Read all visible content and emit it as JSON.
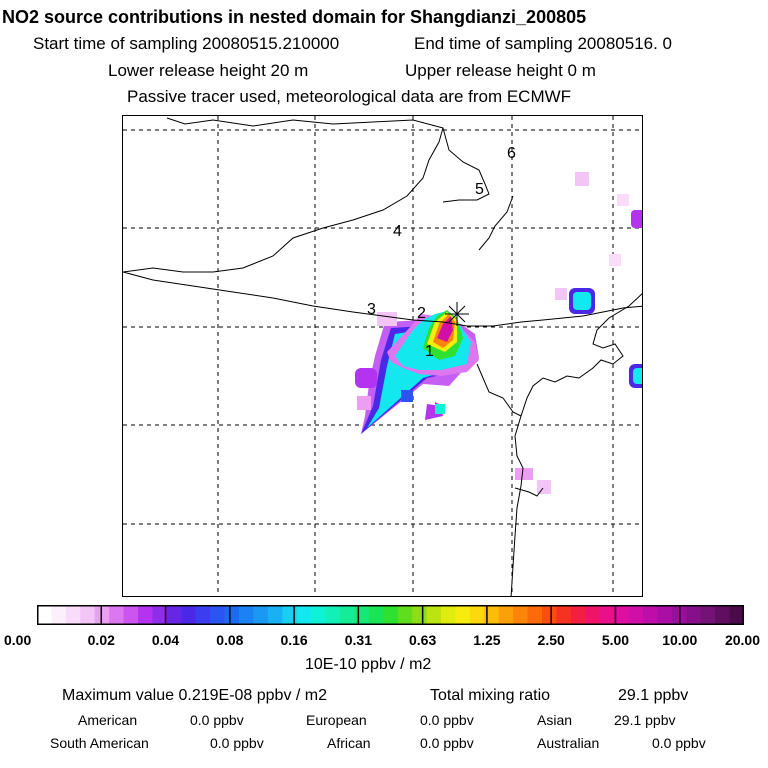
{
  "header": {
    "title": "NO2 source contributions in nested domain for Shangdianzi_200805",
    "start_label": "Start time of sampling 20080515.210000",
    "end_label": "End time of sampling 20080516.     0",
    "lower_release": "Lower release height   20 m",
    "upper_release": "Upper release height    0 m",
    "note": "Passive tracer used, meteorological data are from ECMWF"
  },
  "map": {
    "contour_labels": [
      "1",
      "2",
      "3",
      "4",
      "5",
      "6"
    ],
    "release_marker": "release-site-star"
  },
  "colorbar": {
    "units": "10E-10 ppbv / m2",
    "tick_labels": [
      "0.00",
      "0.02",
      "0.04",
      "0.08",
      "0.16",
      "0.31",
      "0.63",
      "1.25",
      "2.50",
      "5.00",
      "10.00",
      "20.00"
    ],
    "colors": [
      "#ffffff",
      "#fdf0fd",
      "#f9dcfa",
      "#f3c4f6",
      "#ec9ff2",
      "#dd77ef",
      "#cc55f0",
      "#b333f0",
      "#8f2de8",
      "#6626e6",
      "#4b28e8",
      "#3a3ef0",
      "#2a55f2",
      "#1d6af2",
      "#1a82f2",
      "#1a99f2",
      "#18b2f2",
      "#16cff2",
      "#12e8ee",
      "#10f2d8",
      "#12f0b8",
      "#14ec98",
      "#16e878",
      "#1ae455",
      "#2ee030",
      "#60de1c",
      "#8edc16",
      "#bce412",
      "#e0ec10",
      "#f6ec10",
      "#fcd80c",
      "#fcbc0a",
      "#fca008",
      "#fc8408",
      "#fc6a0a",
      "#fa4e10",
      "#f63220",
      "#f41e40",
      "#f01468",
      "#ea108a",
      "#e00ea0",
      "#d00ea8",
      "#be0eaa",
      "#aa0ea4",
      "#98109a",
      "#86108c",
      "#741276",
      "#600e60",
      "#4c0a4a"
    ]
  },
  "stats": {
    "max_label": "Maximum value  0.219E-08 ppbv / m2",
    "total_label": "Total mixing ratio",
    "total_value": "29.1 ppbv",
    "regions": [
      {
        "name": "American",
        "value": "0.0 ppbv"
      },
      {
        "name": "European",
        "value": "0.0 ppbv"
      },
      {
        "name": "Asian",
        "value": "29.1 ppbv"
      },
      {
        "name": "South American",
        "value": "0.0 ppbv"
      },
      {
        "name": "African",
        "value": "0.0 ppbv"
      },
      {
        "name": "Australian",
        "value": "0.0 ppbv"
      }
    ]
  },
  "chart_data": {
    "type": "heatmap",
    "title": "NO2 source contributions in nested domain for Shangdianzi_200805",
    "colorbar_ticks": [
      0.0,
      0.02,
      0.04,
      0.08,
      0.16,
      0.31,
      0.63,
      1.25,
      2.5,
      5.0,
      10.0,
      20.0
    ],
    "units": "10E-10 ppbv / m2",
    "maximum_value": "0.219E-08 ppbv / m2",
    "total_mixing_ratio_ppbv": 29.1
  }
}
